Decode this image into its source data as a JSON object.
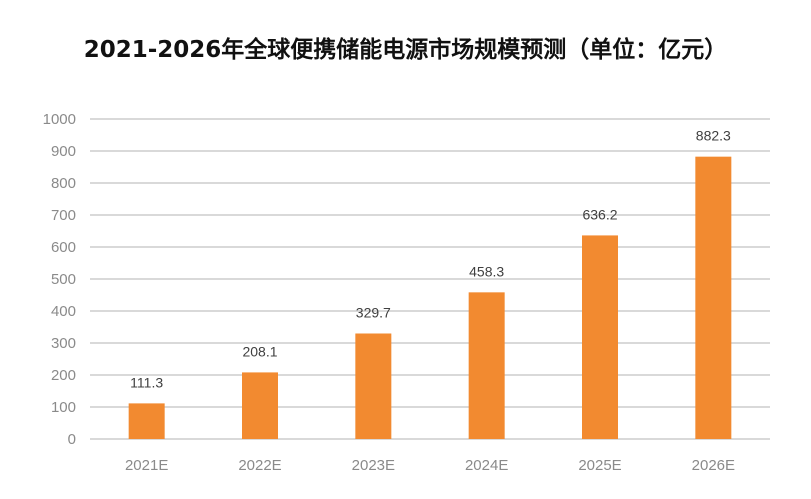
{
  "chart_data": {
    "type": "bar",
    "title": "2021-2026年全球便携储能电源市场规模预测（单位：亿元）",
    "categories": [
      "2021E",
      "2022E",
      "2023E",
      "2024E",
      "2025E",
      "2026E"
    ],
    "values": [
      111.3,
      208.1,
      329.7,
      458.3,
      636.2,
      882.3
    ],
    "value_labels": [
      "111.3",
      "208.1",
      "329.7",
      "458.3",
      "636.2",
      "882.3"
    ],
    "y_ticks": [
      "0",
      "100",
      "200",
      "300",
      "400",
      "500",
      "600",
      "700",
      "800",
      "900",
      "1000"
    ],
    "ylim": [
      0,
      1000
    ],
    "xlabel": "",
    "ylabel": "",
    "grid": true,
    "legend": "none",
    "colors": {
      "bar": "#F28A30",
      "grid": "#D9D9D9",
      "axis_text": "#8A8A8A",
      "value_text": "#404040"
    }
  }
}
